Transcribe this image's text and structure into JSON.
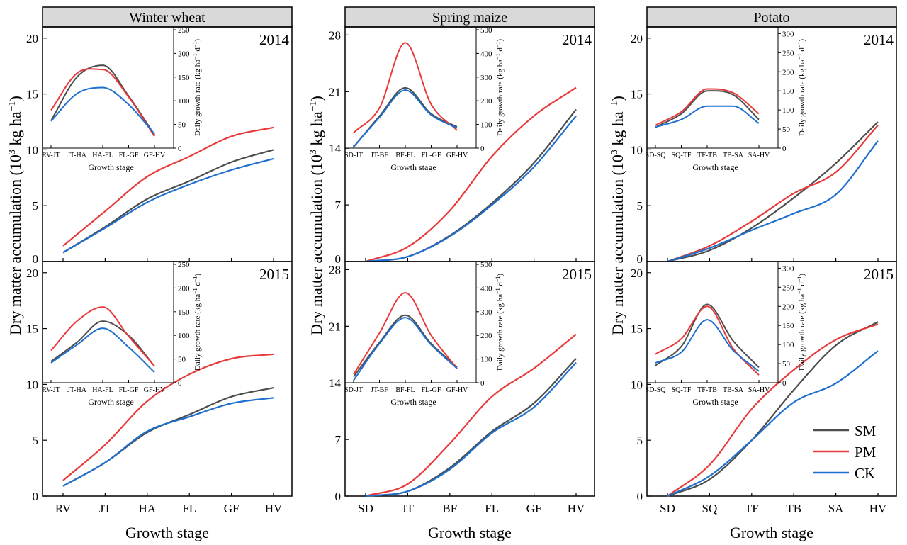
{
  "colors": {
    "SM": "#4d4d4d",
    "PM": "#e83a3a",
    "CK": "#1f6fcf",
    "header_bg": "#d9d9d9"
  },
  "labels": {
    "ylabel": "Dry matter accumulation (10",
    "ylabel_sup": "3",
    "ylabel_tail": " kg ha",
    "ylabel_sup2": "−1",
    "ylabel_end": ")",
    "xlabel": "Growth stage",
    "inset_xlabel": "Growth stage",
    "inset_ylabel": "Daily growth rate (kg ha",
    "inset_ylabel_sup1": "−1",
    "inset_ylabel_mid": " d",
    "inset_ylabel_sup2": "−1",
    "inset_ylabel_end": ")"
  },
  "legend": [
    {
      "name": "SM",
      "color": "#4d4d4d"
    },
    {
      "name": "PM",
      "color": "#e83a3a"
    },
    {
      "name": "CK",
      "color": "#1f6fcf"
    }
  ],
  "chart_data": [
    {
      "type": "line",
      "crop": "Winter wheat",
      "year": "2014",
      "categories": [
        "RV",
        "JT",
        "HA",
        "FL",
        "GF",
        "HV"
      ],
      "ylim": [
        0,
        21
      ],
      "yticks": [
        0,
        5,
        10,
        15,
        20
      ],
      "series": [
        {
          "name": "SM",
          "values": [
            0.8,
            3.1,
            5.6,
            7.2,
            8.9,
            10.0
          ]
        },
        {
          "name": "PM",
          "values": [
            1.4,
            4.5,
            7.6,
            9.4,
            11.2,
            12.0
          ]
        },
        {
          "name": "CK",
          "values": [
            0.8,
            3.0,
            5.3,
            6.9,
            8.2,
            9.2
          ]
        }
      ],
      "inset": {
        "categories": [
          "RV-JT",
          "JT-HA",
          "HA-FL",
          "FL-GF",
          "GF-HV"
        ],
        "ylim": [
          0,
          250
        ],
        "yticks": [
          0,
          50,
          100,
          150,
          200,
          250
        ],
        "series": [
          {
            "name": "SM",
            "values": [
              58,
              150,
              175,
              110,
              28
            ]
          },
          {
            "name": "PM",
            "values": [
              80,
              158,
              166,
              108,
              25
            ]
          },
          {
            "name": "CK",
            "values": [
              57,
              115,
              128,
              92,
              30
            ]
          }
        ]
      }
    },
    {
      "type": "line",
      "crop": "Spring maize",
      "year": "2014",
      "categories": [
        "SD",
        "JT",
        "BF",
        "FL",
        "GF",
        "HV"
      ],
      "ylim": [
        0,
        29
      ],
      "yticks": [
        0,
        7,
        14,
        21,
        28
      ],
      "series": [
        {
          "name": "SM",
          "values": [
            0.0,
            0.6,
            3.2,
            7.2,
            12.2,
            18.8
          ]
        },
        {
          "name": "PM",
          "values": [
            0.0,
            1.8,
            6.3,
            13.0,
            18.0,
            21.5
          ]
        },
        {
          "name": "CK",
          "values": [
            0.0,
            0.6,
            3.1,
            7.0,
            11.7,
            18.0
          ]
        }
      ],
      "inset": {
        "categories": [
          "SD-JT",
          "JT-BF",
          "BF-FL",
          "FL-GF",
          "GF-HV"
        ],
        "ylim": [
          0,
          500
        ],
        "yticks": [
          0,
          100,
          200,
          300,
          400,
          500
        ],
        "series": [
          {
            "name": "SM",
            "values": [
              5,
              135,
              255,
              145,
              90
            ]
          },
          {
            "name": "PM",
            "values": [
              65,
              170,
              445,
              185,
              75
            ]
          },
          {
            "name": "CK",
            "values": [
              5,
              130,
              245,
              140,
              85
            ]
          }
        ]
      }
    },
    {
      "type": "line",
      "crop": "Potato",
      "year": "2014",
      "categories": [
        "SD",
        "SQ",
        "TF",
        "TB",
        "SA",
        "HV"
      ],
      "ylim": [
        0,
        21
      ],
      "yticks": [
        0,
        5,
        10,
        15,
        20
      ],
      "series": [
        {
          "name": "SM",
          "values": [
            0.0,
            1.0,
            3.0,
            5.7,
            8.8,
            12.5
          ]
        },
        {
          "name": "PM",
          "values": [
            0.0,
            1.4,
            3.6,
            6.1,
            8.0,
            12.2
          ]
        },
        {
          "name": "CK",
          "values": [
            0.0,
            1.2,
            2.8,
            4.3,
            6.0,
            10.8
          ]
        }
      ],
      "inset": {
        "categories": [
          "SD-SQ",
          "SQ-TF",
          "TF-TB",
          "TB-SA",
          "SA-HV"
        ],
        "ylim": [
          0,
          310
        ],
        "yticks": [
          0,
          50,
          100,
          150,
          200,
          250,
          300
        ],
        "series": [
          {
            "name": "SM",
            "values": [
              55,
              90,
              150,
              140,
              75
            ]
          },
          {
            "name": "PM",
            "values": [
              60,
              95,
              155,
              145,
              90
            ]
          },
          {
            "name": "CK",
            "values": [
              55,
              75,
              110,
              110,
              65
            ]
          }
        ]
      }
    },
    {
      "type": "line",
      "crop": "Winter wheat",
      "year": "2015",
      "categories": [
        "RV",
        "JT",
        "HA",
        "FL",
        "GF",
        "HV"
      ],
      "ylim": [
        0,
        21
      ],
      "yticks": [
        0,
        5,
        10,
        15,
        20
      ],
      "series": [
        {
          "name": "SM",
          "values": [
            0.9,
            3.0,
            5.7,
            7.3,
            8.9,
            9.7
          ]
        },
        {
          "name": "PM",
          "values": [
            1.4,
            4.6,
            8.5,
            10.9,
            12.3,
            12.7
          ]
        },
        {
          "name": "CK",
          "values": [
            0.9,
            3.0,
            5.8,
            7.1,
            8.3,
            8.8
          ]
        }
      ],
      "inset": {
        "categories": [
          "RV-JT",
          "JT-HA",
          "HA-FL",
          "FL-GF",
          "GF-HV"
        ],
        "ylim": [
          0,
          250
        ],
        "yticks": [
          0,
          50,
          100,
          150,
          200,
          250
        ],
        "series": [
          {
            "name": "SM",
            "values": [
              45,
              85,
              130,
              100,
              35
            ]
          },
          {
            "name": "PM",
            "values": [
              68,
              130,
              160,
              98,
              35
            ]
          },
          {
            "name": "CK",
            "values": [
              42,
              80,
              115,
              75,
              22
            ]
          }
        ]
      }
    },
    {
      "type": "line",
      "crop": "Spring maize",
      "year": "2015",
      "categories": [
        "SD",
        "JT",
        "BF",
        "FL",
        "GF",
        "HV"
      ],
      "ylim": [
        0,
        29
      ],
      "yticks": [
        0,
        7,
        14,
        21,
        28
      ],
      "series": [
        {
          "name": "SM",
          "values": [
            0.0,
            0.6,
            3.5,
            8.0,
            11.5,
            17.0
          ]
        },
        {
          "name": "PM",
          "values": [
            0.0,
            1.5,
            6.5,
            12.3,
            15.8,
            20.0
          ]
        },
        {
          "name": "CK",
          "values": [
            0.0,
            0.6,
            3.3,
            7.8,
            11.0,
            16.5
          ]
        }
      ],
      "inset": {
        "categories": [
          "SD-JT",
          "JT-BF",
          "BF-FL",
          "FL-GF",
          "GF-HV"
        ],
        "ylim": [
          0,
          500
        ],
        "yticks": [
          0,
          100,
          200,
          300,
          400,
          500
        ],
        "series": [
          {
            "name": "SM",
            "values": [
              25,
              170,
              285,
              165,
              65
            ]
          },
          {
            "name": "PM",
            "values": [
              35,
              210,
              380,
              200,
              60
            ]
          },
          {
            "name": "CK",
            "values": [
              10,
              165,
              275,
              160,
              60
            ]
          }
        ]
      }
    },
    {
      "type": "line",
      "crop": "Potato",
      "year": "2015",
      "categories": [
        "SD",
        "SQ",
        "TF",
        "TB",
        "SA",
        "HV"
      ],
      "ylim": [
        0,
        21
      ],
      "yticks": [
        0,
        5,
        10,
        15,
        20
      ],
      "series": [
        {
          "name": "SM",
          "values": [
            0.0,
            1.5,
            5.0,
            9.5,
            13.5,
            15.6
          ]
        },
        {
          "name": "PM",
          "values": [
            0.0,
            2.8,
            7.8,
            11.3,
            14.0,
            15.4
          ]
        },
        {
          "name": "CK",
          "values": [
            0.0,
            1.8,
            5.0,
            8.4,
            10.1,
            13.0
          ]
        }
      ],
      "inset": {
        "categories": [
          "SD-SQ",
          "SQ-TF",
          "TF-TB",
          "TB-SA",
          "SA-HV"
        ],
        "ylim": [
          0,
          310
        ],
        "yticks": [
          0,
          50,
          100,
          150,
          200,
          250,
          300
        ],
        "series": [
          {
            "name": "SM",
            "values": [
              45,
              95,
              205,
              110,
              40
            ]
          },
          {
            "name": "PM",
            "values": [
              75,
              115,
              200,
              90,
              20
            ]
          },
          {
            "name": "CK",
            "values": [
              52,
              80,
              165,
              85,
              30
            ]
          }
        ]
      }
    }
  ]
}
